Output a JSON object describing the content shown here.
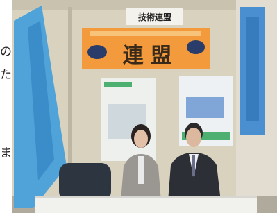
{
  "margin_text": [
    "の",
    "た",
    "ま"
  ],
  "sign": {
    "label": "技術連盟"
  },
  "banner": {
    "label": "連 盟"
  }
}
